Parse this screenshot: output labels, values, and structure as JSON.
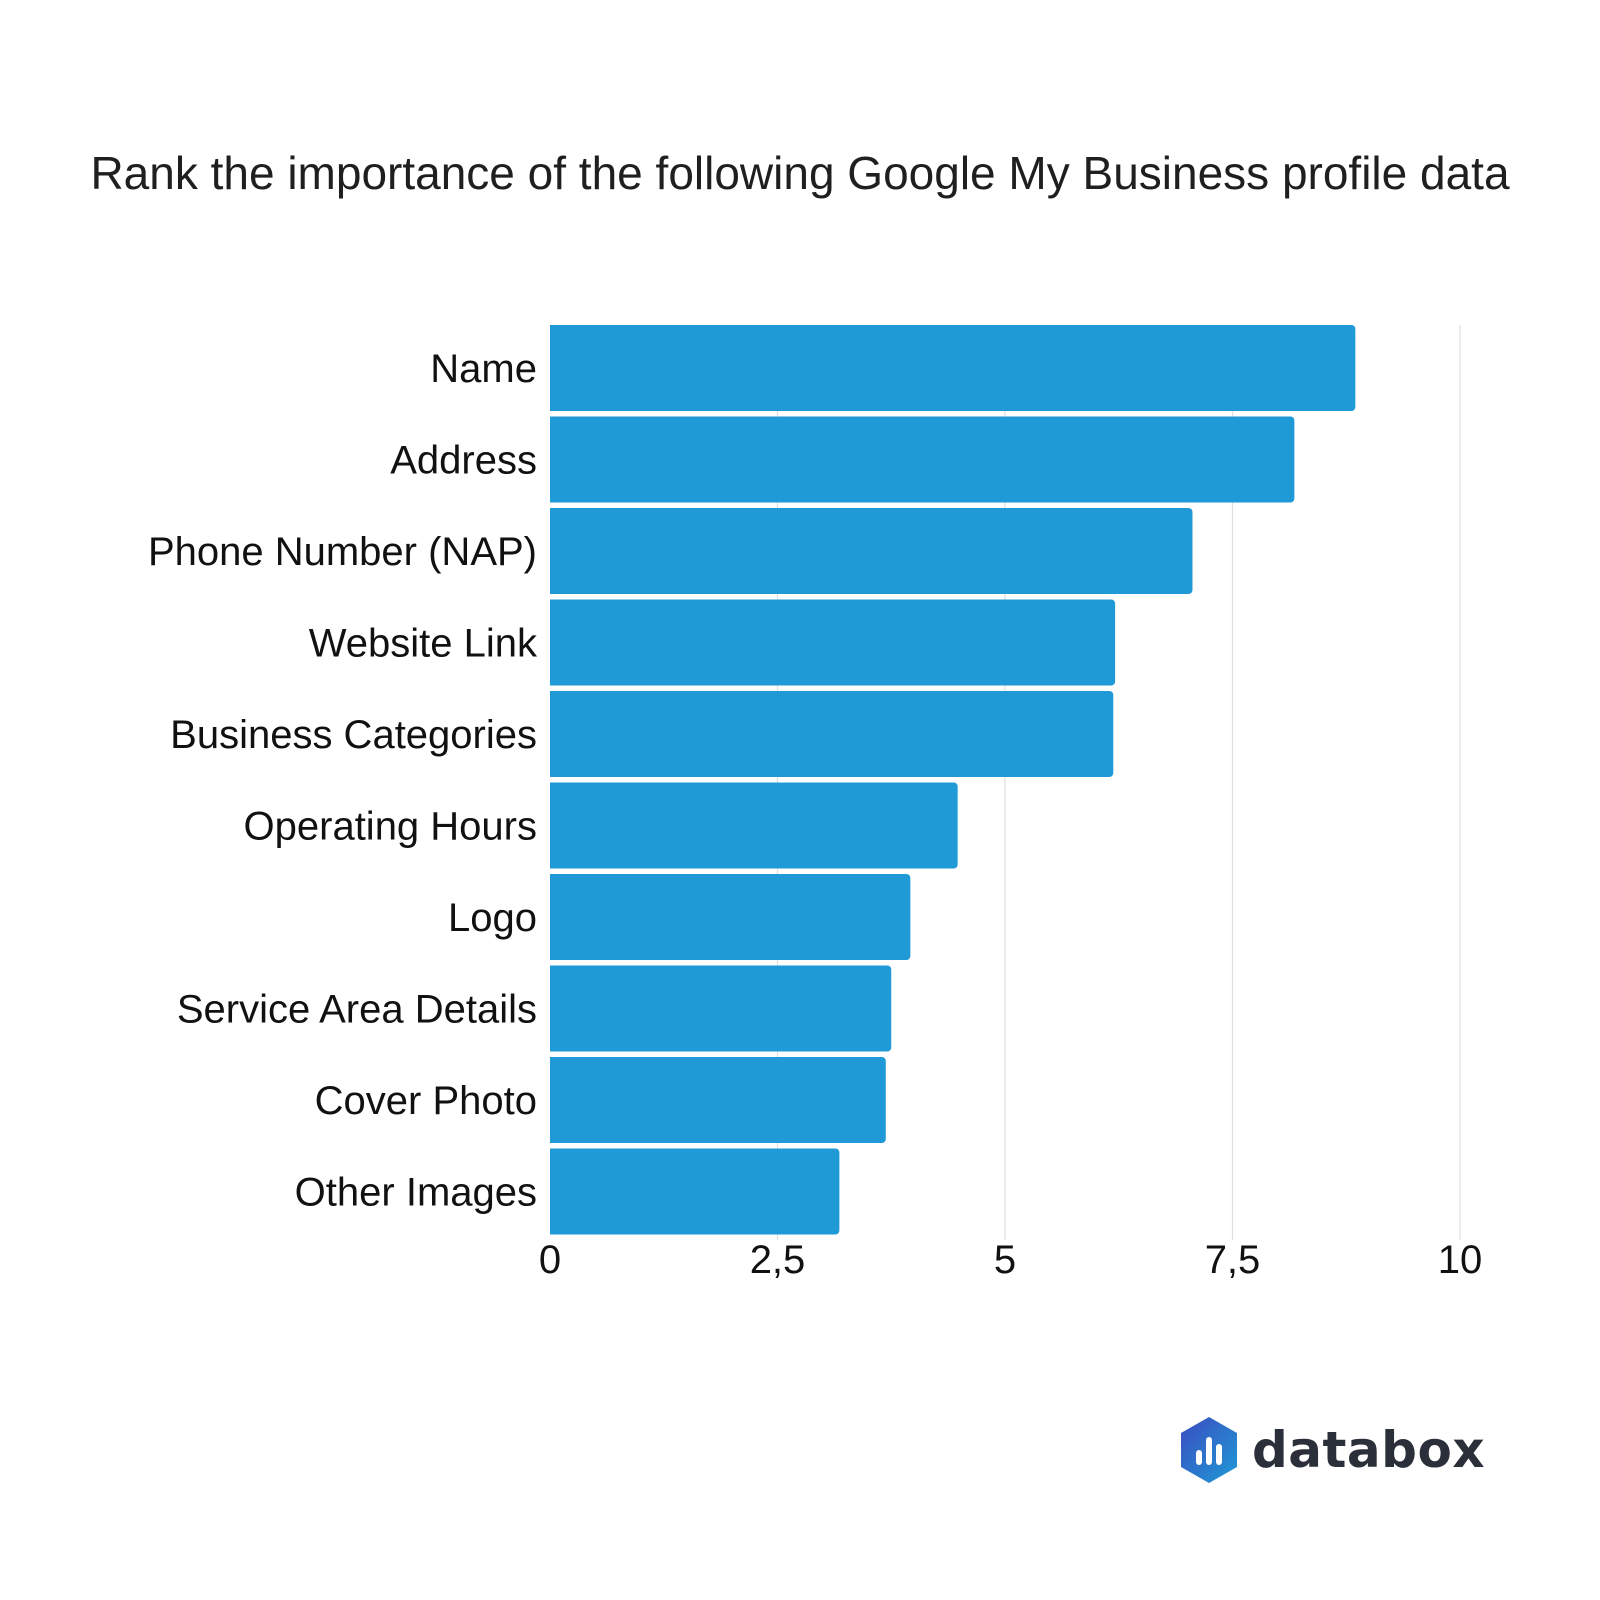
{
  "chart_data": {
    "type": "bar",
    "orientation": "horizontal",
    "title": "Rank the importance of the following Google My Business profile data",
    "categories": [
      "Name",
      "Address",
      "Phone Number (NAP)",
      "Website Link",
      "Business Categories",
      "Operating Hours",
      "Logo",
      "Service Area Details",
      "Cover Photo",
      "Other Images"
    ],
    "values": [
      8.85,
      8.18,
      7.06,
      6.21,
      6.19,
      4.48,
      3.96,
      3.75,
      3.69,
      3.18
    ],
    "xlim": [
      0,
      10
    ],
    "xticks": [
      0,
      2.5,
      5,
      7.5,
      10
    ],
    "xtick_labels": [
      "0",
      "2,5",
      "5",
      "7,5",
      "10"
    ],
    "xlabel": "",
    "ylabel": "",
    "grid": true,
    "bar_color": "#1f9ad6"
  },
  "brand": {
    "name": "databox",
    "colors": [
      "#3b4cc0",
      "#1f9ad6"
    ]
  }
}
